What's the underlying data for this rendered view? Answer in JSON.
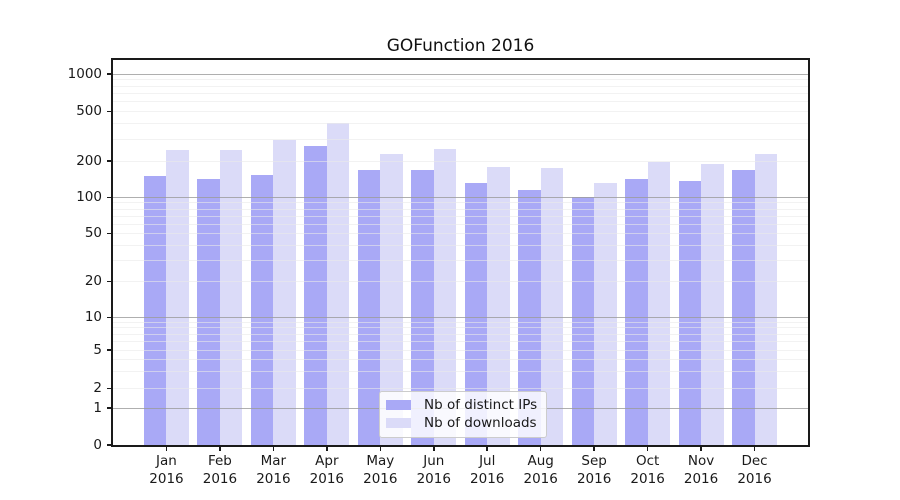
{
  "chart_data": {
    "type": "bar",
    "title": "GOFunction 2016",
    "categories": [
      "Jan",
      "Feb",
      "Mar",
      "Apr",
      "May",
      "Jun",
      "Jul",
      "Aug",
      "Sep",
      "Oct",
      "Nov",
      "Dec"
    ],
    "category_year": "2016",
    "series": [
      {
        "name": "Nb of distinct IPs",
        "color": "#a9a9f6",
        "values": [
          148,
          142,
          152,
          264,
          168,
          166,
          131,
          115,
          100,
          141,
          136,
          168
        ]
      },
      {
        "name": "Nb of downloads",
        "color": "#dbdbf8",
        "values": [
          245,
          245,
          290,
          400,
          227,
          246,
          178,
          175,
          131,
          195,
          187,
          226
        ]
      }
    ],
    "xlabel": "",
    "ylabel": "",
    "yscale": "log-with-zero-baseline",
    "y_ticks_labeled": [
      0,
      1,
      2,
      5,
      10,
      20,
      50,
      100,
      200,
      500,
      1000
    ],
    "y_ticks_major_grid": [
      1,
      10,
      100,
      1000
    ],
    "ylim": [
      0,
      1400
    ],
    "grid": true,
    "legend_position": "lower center-left inside plot"
  }
}
